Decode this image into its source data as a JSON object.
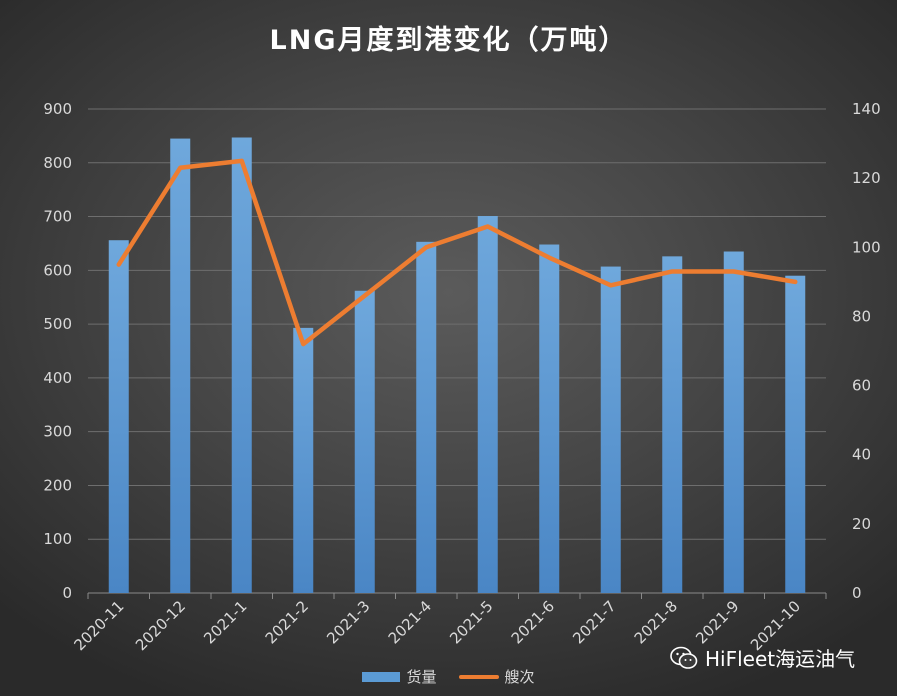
{
  "chart_data": {
    "type": "bar+line",
    "title": "LNG月度到港变化（万吨）",
    "categories": [
      "2020-11",
      "2020-12",
      "2021-1",
      "2021-2",
      "2021-3",
      "2021-4",
      "2021-5",
      "2021-6",
      "2021-7",
      "2021-8",
      "2021-9",
      "2021-10"
    ],
    "series": [
      {
        "name": "货量",
        "type": "bar",
        "axis": "left",
        "color": "#5b9bd5",
        "values": [
          656,
          845,
          847,
          493,
          562,
          653,
          701,
          648,
          607,
          626,
          635,
          590
        ]
      },
      {
        "name": "艘次",
        "type": "line",
        "axis": "right",
        "color": "#ed7d31",
        "values": [
          95,
          123,
          125,
          72,
          86,
          100,
          106,
          97,
          89,
          93,
          93,
          90
        ]
      }
    ],
    "left_axis": {
      "min": 0,
      "max": 900,
      "step": 100,
      "ticks": [
        "0",
        "100",
        "200",
        "300",
        "400",
        "500",
        "600",
        "700",
        "800",
        "900"
      ]
    },
    "right_axis": {
      "min": 0,
      "max": 140,
      "step": 20,
      "ticks": [
        "0",
        "20",
        "40",
        "60",
        "80",
        "100",
        "120",
        "140"
      ]
    },
    "grid": true,
    "legend_position": "bottom"
  },
  "watermark": {
    "text": "HiFleet海运油气",
    "icon": "wechat-icon"
  }
}
